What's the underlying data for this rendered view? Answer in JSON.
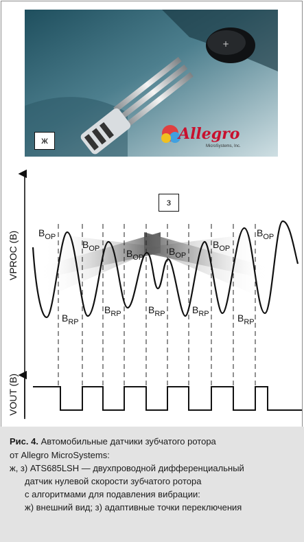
{
  "photo": {
    "label": "ж",
    "logo_text": "Allegro",
    "logo_sub": "MicroSystems, Inc."
  },
  "diagram": {
    "label": "з",
    "y_label_top": "VPROC (В)",
    "y_label_bottom": "VOUT (В)",
    "op_sub": "OP",
    "rp_sub": "RP",
    "b": "B"
  },
  "caption": {
    "fig_label": "Рис. 4.",
    "line1": " Автомобильные датчики зубчатого ротора",
    "line2": "от Allegro MicroSystems:",
    "line3": "ж, з) ATS685LSH — двухпроводной дифференциальный",
    "line4": "датчик нулевой скорости зубчатого ротора",
    "line5": "с алгоритмами для подавления вибрации:",
    "line6": "ж) внешний вид; з) адаптивные точки переключения"
  },
  "colors": {
    "logo_red": "#c8102e",
    "caption_bg": "#e3e3e3"
  }
}
